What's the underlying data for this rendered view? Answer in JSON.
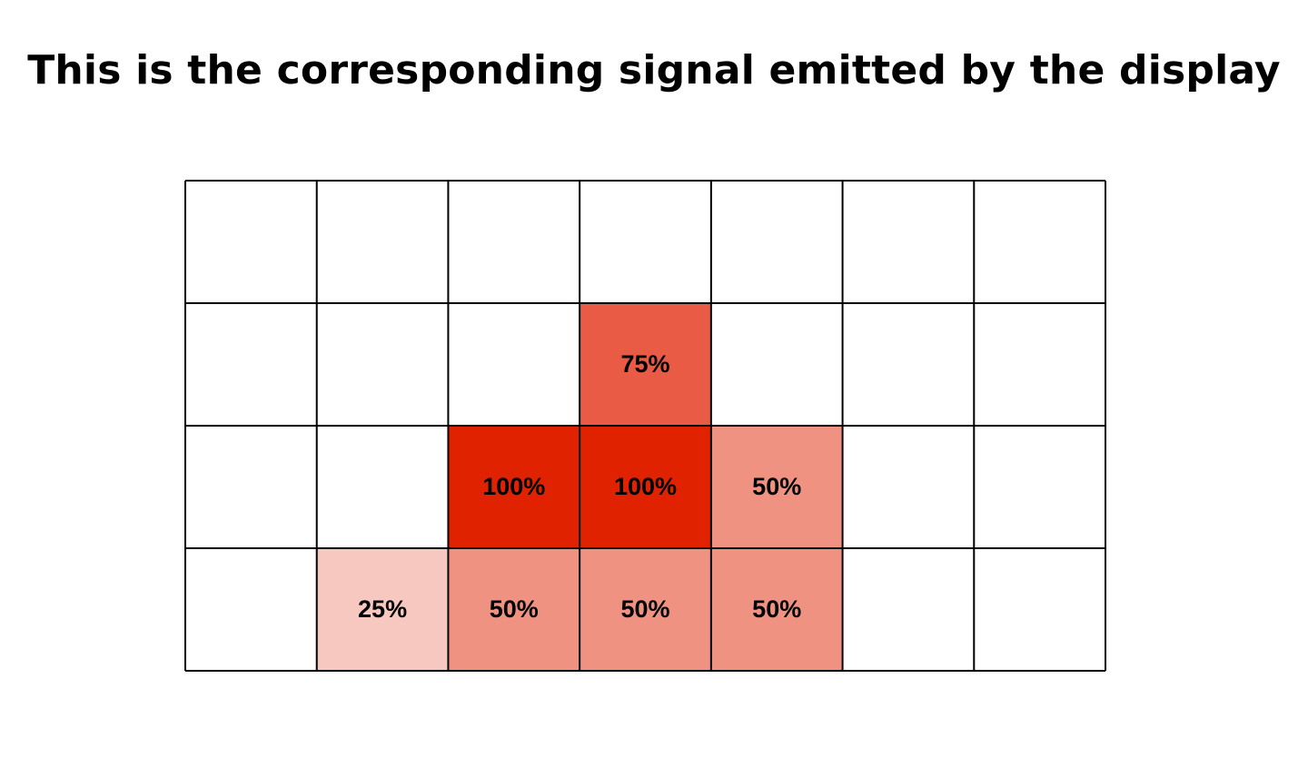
{
  "title": "This is the corresponding signal emitted by the display",
  "grid": {
    "columns": 7,
    "rows": 4,
    "cells": [
      {
        "row": 1,
        "col": 3,
        "label": "75%",
        "intensity": 0.75,
        "color": "#E95B44"
      },
      {
        "row": 2,
        "col": 2,
        "label": "100%",
        "intensity": 1.0,
        "color": "#E02200"
      },
      {
        "row": 2,
        "col": 3,
        "label": "100%",
        "intensity": 1.0,
        "color": "#E02200"
      },
      {
        "row": 2,
        "col": 4,
        "label": "50%",
        "intensity": 0.5,
        "color": "#F09281"
      },
      {
        "row": 3,
        "col": 1,
        "label": "25%",
        "intensity": 0.25,
        "color": "#F7C8C0"
      },
      {
        "row": 3,
        "col": 2,
        "label": "50%",
        "intensity": 0.5,
        "color": "#F09281"
      },
      {
        "row": 3,
        "col": 3,
        "label": "50%",
        "intensity": 0.5,
        "color": "#F09281"
      },
      {
        "row": 3,
        "col": 4,
        "label": "50%",
        "intensity": 0.5,
        "color": "#F09281"
      }
    ],
    "line_color": "#000000",
    "empty_color": "#FFFFFF"
  }
}
